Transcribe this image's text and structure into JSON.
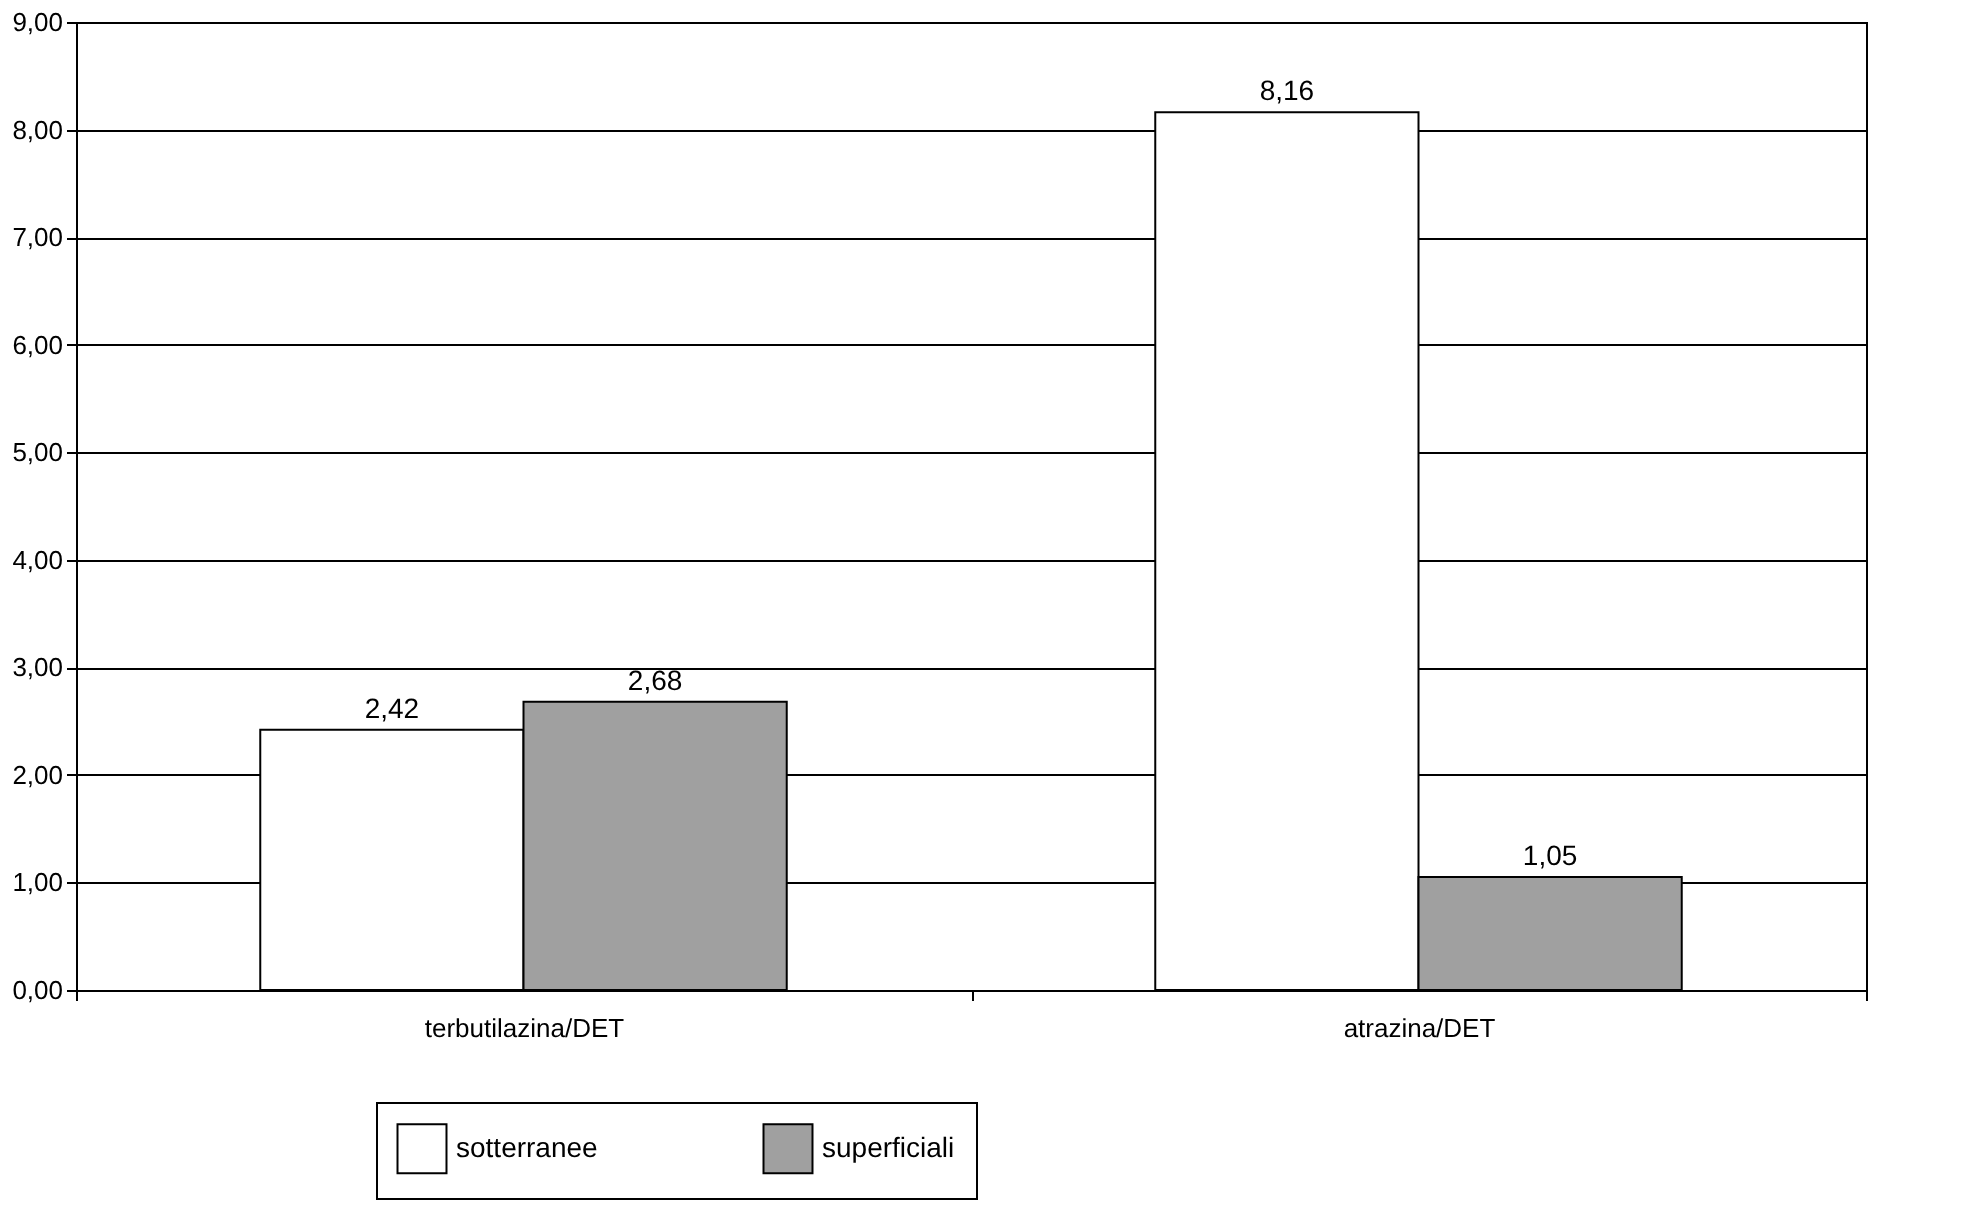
{
  "chart_data": {
    "type": "bar",
    "categories": [
      "terbutilazina/DET",
      "atrazina/DET"
    ],
    "series": [
      {
        "name": "sotterranee",
        "color": "#ffffff",
        "values": [
          2.42,
          8.16
        ],
        "value_labels": [
          "2,42",
          "8,16"
        ]
      },
      {
        "name": "superficiali",
        "color": "#a0a0a0",
        "values": [
          2.68,
          1.05
        ],
        "value_labels": [
          "2,68",
          "1,05"
        ]
      }
    ],
    "ylim": [
      0,
      9
    ],
    "yticks": [
      {
        "value": 0,
        "label": "0,00"
      },
      {
        "value": 1,
        "label": "1,00"
      },
      {
        "value": 2,
        "label": "2,00"
      },
      {
        "value": 3,
        "label": "3,00"
      },
      {
        "value": 4,
        "label": "4,00"
      },
      {
        "value": 5,
        "label": "5,00"
      },
      {
        "value": 6,
        "label": "6,00"
      },
      {
        "value": 7,
        "label": "7,00"
      },
      {
        "value": 8,
        "label": "8,00"
      },
      {
        "value": 9,
        "label": "9,00"
      }
    ],
    "grid": "y",
    "legend": "bottom"
  }
}
